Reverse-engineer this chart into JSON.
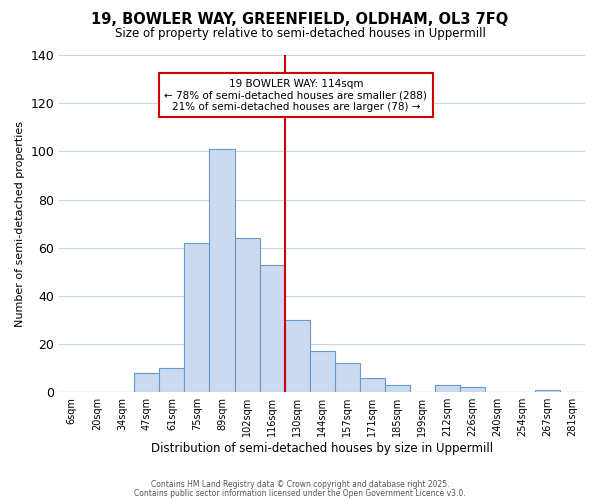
{
  "title": "19, BOWLER WAY, GREENFIELD, OLDHAM, OL3 7FQ",
  "subtitle": "Size of property relative to semi-detached houses in Uppermill",
  "xlabel": "Distribution of semi-detached houses by size in Uppermill",
  "ylabel": "Number of semi-detached properties",
  "bin_labels": [
    "6sqm",
    "20sqm",
    "34sqm",
    "47sqm",
    "61sqm",
    "75sqm",
    "89sqm",
    "102sqm",
    "116sqm",
    "130sqm",
    "144sqm",
    "157sqm",
    "171sqm",
    "185sqm",
    "199sqm",
    "212sqm",
    "226sqm",
    "240sqm",
    "254sqm",
    "267sqm",
    "281sqm"
  ],
  "bar_values": [
    0,
    0,
    0,
    8,
    10,
    62,
    101,
    64,
    53,
    30,
    17,
    12,
    6,
    3,
    0,
    3,
    2,
    0,
    0,
    1,
    0
  ],
  "bar_color": "#ccdaf0",
  "bar_edge_color": "#6699cc",
  "vline_color": "#cc0000",
  "vline_index": 8.5,
  "ylim": [
    0,
    140
  ],
  "yticks": [
    0,
    20,
    40,
    60,
    80,
    100,
    120,
    140
  ],
  "annotation_title": "19 BOWLER WAY: 114sqm",
  "annotation_line1": "← 78% of semi-detached houses are smaller (288)",
  "annotation_line2": "21% of semi-detached houses are larger (78) →",
  "annotation_box_color": "#ffffff",
  "annotation_box_edge": "#cc0000",
  "footer1": "Contains HM Land Registry data © Crown copyright and database right 2025.",
  "footer2": "Contains public sector information licensed under the Open Government Licence v3.0.",
  "background_color": "#ffffff",
  "grid_color": "#c8d4e8"
}
